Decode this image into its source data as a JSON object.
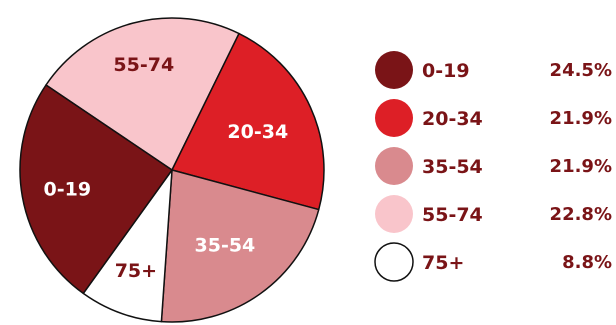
{
  "chart_data": {
    "type": "pie",
    "title": "",
    "slices": [
      {
        "label": "0-19",
        "value": 24.5,
        "value_label": "24.5%",
        "color": "#7a1417",
        "text_color": "#ffffff"
      },
      {
        "label": "20-34",
        "value": 21.9,
        "value_label": "21.9%",
        "color": "#dd1f26",
        "text_color": "#ffffff"
      },
      {
        "label": "35-54",
        "value": 21.9,
        "value_label": "21.9%",
        "color": "#d98a8e",
        "text_color": "#ffffff"
      },
      {
        "label": "55-74",
        "value": 22.8,
        "value_label": "22.8%",
        "color": "#f9c5cb",
        "text_color": "#7a1417"
      },
      {
        "label": "75+",
        "value": 8.8,
        "value_label": "8.8%",
        "color": "#ffffff",
        "text_color": "#7a1417"
      }
    ],
    "legend_position": "right",
    "outline_color": "#111111"
  }
}
